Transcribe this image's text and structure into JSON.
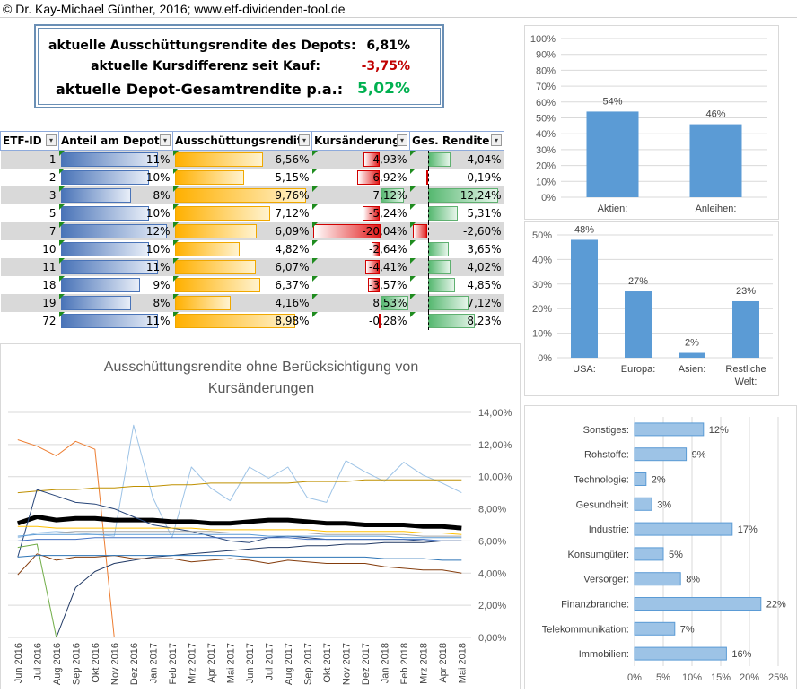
{
  "header": {
    "text": "© Dr. Kay-Michael Günther, 2016; www.etf-dividenden-tool.de"
  },
  "summary": {
    "dividend_label": "aktuelle Ausschüttungsrendite des Depots:",
    "dividend_value": "6,81%",
    "price_label": "aktuelle Kursdifferenz seit Kauf:",
    "price_value": "-3,75%",
    "total_label": "aktuelle Depot-Gesamtrendite p.a.:",
    "total_value": "5,02%",
    "colors": {
      "negative": "#c00000",
      "positive": "#00b050"
    }
  },
  "table": {
    "headers": [
      "ETF-ID",
      "Anteil am Depot",
      "Ausschüttungsrendite",
      "Kursänderung",
      "Ges. Rendite"
    ],
    "rows": [
      {
        "id": "1",
        "anteil": "11%",
        "anteil_v": 11,
        "aus": "6,56%",
        "aus_v": 6.56,
        "kurs": "-4,93%",
        "kurs_v": -4.93,
        "ges": "4,04%",
        "ges_v": 4.04
      },
      {
        "id": "2",
        "anteil": "10%",
        "anteil_v": 10,
        "aus": "5,15%",
        "aus_v": 5.15,
        "kurs": "-6,92%",
        "kurs_v": -6.92,
        "ges": "-0,19%",
        "ges_v": -0.19
      },
      {
        "id": "3",
        "anteil": "8%",
        "anteil_v": 8,
        "aus": "9,76%",
        "aus_v": 9.76,
        "kurs": "7,12%",
        "kurs_v": 7.12,
        "ges": "12,24%",
        "ges_v": 12.24
      },
      {
        "id": "5",
        "anteil": "10%",
        "anteil_v": 10,
        "aus": "7,12%",
        "aus_v": 7.12,
        "kurs": "-5,24%",
        "kurs_v": -5.24,
        "ges": "5,31%",
        "ges_v": 5.31
      },
      {
        "id": "7",
        "anteil": "12%",
        "anteil_v": 12,
        "aus": "6,09%",
        "aus_v": 6.09,
        "kurs": "-20,04%",
        "kurs_v": -20.04,
        "ges": "-2,60%",
        "ges_v": -2.6
      },
      {
        "id": "10",
        "anteil": "10%",
        "anteil_v": 10,
        "aus": "4,82%",
        "aus_v": 4.82,
        "kurs": "-2,64%",
        "kurs_v": -2.64,
        "ges": "3,65%",
        "ges_v": 3.65
      },
      {
        "id": "11",
        "anteil": "11%",
        "anteil_v": 11,
        "aus": "6,07%",
        "aus_v": 6.07,
        "kurs": "-4,41%",
        "kurs_v": -4.41,
        "ges": "4,02%",
        "ges_v": 4.02
      },
      {
        "id": "18",
        "anteil": "9%",
        "anteil_v": 9,
        "aus": "6,37%",
        "aus_v": 6.37,
        "kurs": "-3,57%",
        "kurs_v": -3.57,
        "ges": "4,85%",
        "ges_v": 4.85
      },
      {
        "id": "19",
        "anteil": "8%",
        "anteil_v": 8,
        "aus": "4,16%",
        "aus_v": 4.16,
        "kurs": "8,53%",
        "kurs_v": 8.53,
        "ges": "7,12%",
        "ges_v": 7.12
      },
      {
        "id": "72",
        "anteil": "11%",
        "anteil_v": 11,
        "aus": "8,98%",
        "aus_v": 8.98,
        "kurs": "-0,28%",
        "kurs_v": -0.28,
        "ges": "8,23%",
        "ges_v": 8.23
      }
    ]
  },
  "chart_data": [
    {
      "type": "bar",
      "id": "asset-class",
      "categories": [
        "Aktien:",
        "Anleihen:"
      ],
      "values": [
        54,
        46
      ],
      "value_labels": [
        "54%",
        "46%"
      ],
      "ylim": [
        0,
        100
      ],
      "yticks": [
        "0%",
        "10%",
        "20%",
        "30%",
        "40%",
        "50%",
        "60%",
        "70%",
        "80%",
        "90%",
        "100%"
      ],
      "color": "#5b9bd5"
    },
    {
      "type": "bar",
      "id": "region",
      "categories": [
        "USA:",
        "Europa:",
        "Asien:",
        "Restliche Welt:"
      ],
      "values": [
        48,
        27,
        2,
        23
      ],
      "value_labels": [
        "48%",
        "27%",
        "2%",
        "23%"
      ],
      "ylim": [
        0,
        50
      ],
      "yticks": [
        "0%",
        "10%",
        "20%",
        "30%",
        "40%",
        "50%"
      ],
      "color": "#5b9bd5"
    },
    {
      "type": "line",
      "id": "dividend-history",
      "title": "Ausschüttungsrendite ohne Berücksichtigung von Kursänderungen",
      "x": [
        "Jun 2016",
        "Jul 2016",
        "Aug 2016",
        "Sep 2016",
        "Okt 2016",
        "Nov 2016",
        "Dez 2016",
        "Jan 2017",
        "Feb 2017",
        "Mrz 2017",
        "Apr 2017",
        "Mai 2017",
        "Jun 2017",
        "Jul 2017",
        "Aug 2017",
        "Sep 2017",
        "Okt 2017",
        "Nov 2017",
        "Dez 2017",
        "Jan 2018",
        "Feb 2018",
        "Mrz 2018",
        "Apr 2018",
        "Mai 2018"
      ],
      "ylim": [
        0,
        14
      ],
      "yticks": [
        "0,00%",
        "2,00%",
        "4,00%",
        "6,00%",
        "8,00%",
        "10,00%",
        "12,00%",
        "14,00%"
      ],
      "series": [
        {
          "color": "#ed7d31",
          "width": 1,
          "values": [
            12.3,
            11.9,
            11.3,
            12.2,
            11.7,
            0,
            null,
            null,
            null,
            null,
            null,
            null,
            null,
            null,
            null,
            null,
            null,
            null,
            null,
            null,
            null,
            null,
            null,
            null
          ]
        },
        {
          "color": "#9dc3e6",
          "width": 1,
          "values": [
            6.2,
            6.5,
            6.6,
            6.5,
            6.4,
            6.3,
            13.2,
            8.7,
            6.2,
            10.6,
            9.3,
            8.5,
            10.6,
            9.9,
            10.6,
            8.7,
            8.4,
            11.0,
            10.3,
            9.7,
            10.9,
            10.1,
            9.6,
            9.0
          ]
        },
        {
          "color": "#bf9000",
          "width": 1,
          "values": [
            9.0,
            9.1,
            9.2,
            9.2,
            9.3,
            9.3,
            9.4,
            9.4,
            9.5,
            9.5,
            9.6,
            9.6,
            9.6,
            9.6,
            9.6,
            9.7,
            9.7,
            9.7,
            9.8,
            9.8,
            9.8,
            9.8,
            9.8,
            9.8
          ]
        },
        {
          "color": "#000000",
          "width": 5,
          "values": [
            7.1,
            7.5,
            7.3,
            7.4,
            7.4,
            7.3,
            7.3,
            7.3,
            7.2,
            7.2,
            7.1,
            7.1,
            7.2,
            7.3,
            7.3,
            7.2,
            7.1,
            7.1,
            7.0,
            7.0,
            7.0,
            6.9,
            6.9,
            6.8
          ]
        },
        {
          "color": "#264478",
          "width": 1,
          "values": [
            5.0,
            9.2,
            8.8,
            8.4,
            8.3,
            8.0,
            7.5,
            7.0,
            6.8,
            6.6,
            6.3,
            6.0,
            5.9,
            6.2,
            6.3,
            6.2,
            6.1,
            6.1,
            6.1,
            6.1,
            6.1,
            6.0,
            6.0,
            6.0
          ]
        },
        {
          "color": "#70ad47",
          "width": 1,
          "values": [
            5.6,
            5.8,
            0,
            null,
            null,
            null,
            null,
            null,
            null,
            null,
            null,
            null,
            null,
            null,
            null,
            null,
            null,
            null,
            null,
            null,
            null,
            null,
            null,
            null
          ]
        },
        {
          "color": "#203864",
          "width": 1,
          "values": [
            null,
            null,
            0,
            3.1,
            4.1,
            4.6,
            4.8,
            5.0,
            5.1,
            5.2,
            5.3,
            5.4,
            5.5,
            5.6,
            5.6,
            5.7,
            5.7,
            5.8,
            5.8,
            5.9,
            5.9,
            5.9,
            6.0,
            6.0
          ]
        },
        {
          "color": "#843c0c",
          "width": 1,
          "values": [
            3.9,
            5.2,
            4.8,
            5.0,
            5.0,
            5.1,
            4.9,
            4.9,
            4.9,
            4.7,
            4.8,
            4.9,
            4.8,
            4.6,
            4.8,
            4.7,
            4.6,
            4.6,
            4.6,
            4.4,
            4.3,
            4.2,
            4.2,
            4.0
          ]
        },
        {
          "color": "#2e75b6",
          "width": 1,
          "values": [
            5.0,
            5.1,
            5.1,
            5.1,
            5.1,
            5.1,
            5.1,
            5.1,
            5.1,
            5.1,
            5.1,
            5.1,
            5.0,
            5.0,
            5.0,
            5.0,
            5.0,
            5.0,
            5.0,
            4.9,
            4.9,
            4.9,
            4.8,
            4.8
          ]
        },
        {
          "color": "#ffc000",
          "width": 1,
          "values": [
            6.9,
            6.9,
            6.8,
            6.8,
            6.8,
            6.8,
            6.8,
            6.8,
            6.8,
            6.8,
            6.7,
            6.7,
            6.7,
            6.7,
            6.7,
            6.7,
            6.6,
            6.6,
            6.6,
            6.6,
            6.6,
            6.5,
            6.5,
            6.4
          ]
        },
        {
          "color": "#a5a5a5",
          "width": 1,
          "values": [
            6.5,
            6.5,
            6.5,
            6.6,
            6.6,
            6.6,
            6.6,
            6.6,
            6.6,
            6.6,
            6.6,
            6.5,
            6.5,
            6.5,
            6.5,
            6.5,
            6.4,
            6.4,
            6.4,
            6.4,
            6.4,
            6.3,
            6.3,
            6.3
          ]
        },
        {
          "color": "#4472c4",
          "width": 1,
          "values": [
            6.0,
            6.1,
            6.1,
            6.1,
            6.2,
            6.2,
            6.2,
            6.2,
            6.2,
            6.2,
            6.2,
            6.2,
            6.2,
            6.2,
            6.2,
            6.1,
            6.1,
            6.1,
            6.1,
            6.1,
            6.1,
            6.1,
            6.0,
            6.0
          ]
        },
        {
          "color": "#5b9bd5",
          "width": 1,
          "values": [
            6.3,
            6.4,
            6.4,
            6.4,
            6.4,
            6.4,
            6.4,
            6.4,
            6.4,
            6.4,
            6.4,
            6.4,
            6.4,
            6.3,
            6.3,
            6.3,
            6.3,
            6.3,
            6.3,
            6.3,
            6.2,
            6.2,
            6.2,
            6.2
          ]
        }
      ]
    },
    {
      "type": "bar",
      "id": "sector",
      "orientation": "horizontal",
      "categories": [
        "Sonstiges:",
        "Rohstoffe:",
        "Technologie:",
        "Gesundheit:",
        "Industrie:",
        "Konsumgüter:",
        "Versorger:",
        "Finanzbranche:",
        "Telekommunikation:",
        "Immobilien:"
      ],
      "values": [
        12,
        9,
        2,
        3,
        17,
        5,
        8,
        22,
        7,
        16
      ],
      "value_labels": [
        "12%",
        "9%",
        "2%",
        "3%",
        "17%",
        "5%",
        "8%",
        "22%",
        "7%",
        "16%"
      ],
      "xlim": [
        0,
        25
      ],
      "xticks": [
        "0%",
        "5%",
        "10%",
        "15%",
        "20%",
        "25%"
      ],
      "color": "#9dc3e6"
    }
  ]
}
